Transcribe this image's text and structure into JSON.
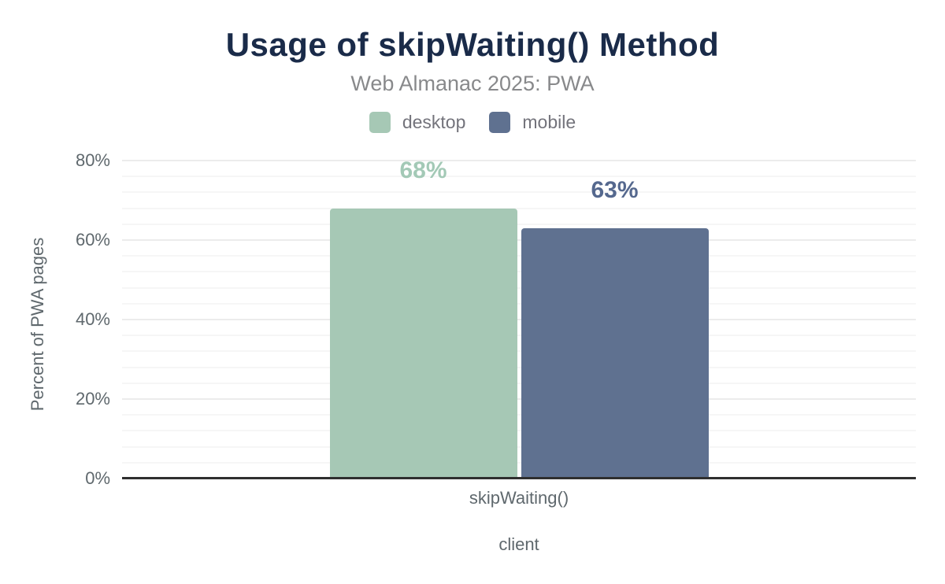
{
  "title": "Usage of skipWaiting() Method",
  "subtitle": "Web Almanac 2025: PWA",
  "legend": {
    "items": [
      {
        "label": "desktop",
        "color": "#a6c8b5"
      },
      {
        "label": "mobile",
        "color": "#5f7190"
      }
    ]
  },
  "chart_data": {
    "type": "bar",
    "title": "Usage of skipWaiting() Method",
    "subtitle": "Web Almanac 2025: PWA",
    "categories": [
      "skipWaiting()"
    ],
    "series": [
      {
        "name": "desktop",
        "values": [
          68
        ],
        "data_labels": [
          "68%"
        ],
        "color": "#a6c8b5",
        "label_color": "#a3c9b6"
      },
      {
        "name": "mobile",
        "values": [
          63
        ],
        "data_labels": [
          "63%"
        ],
        "color": "#5f7190",
        "label_color": "#55688e"
      }
    ],
    "xlabel": "client",
    "ylabel": "Percent of PWA pages",
    "ylim": [
      0,
      80
    ],
    "yticks": [
      {
        "value": 0,
        "label": "0%"
      },
      {
        "value": 20,
        "label": "20%"
      },
      {
        "value": 40,
        "label": "40%"
      },
      {
        "value": 60,
        "label": "60%"
      },
      {
        "value": 80,
        "label": "80%"
      }
    ],
    "grid": {
      "orientation": "horizontal",
      "major_interval": 20,
      "minor_interval": 4
    },
    "legend_position": "top"
  },
  "colors": {
    "title": "#1a2b49",
    "subtitle": "#88898b",
    "legend_text": "#73737b",
    "axis_text": "#5f686d",
    "axis_line": "#2f2f2f",
    "grid_major": "#ececec",
    "grid_minor": "#f6f6f6",
    "background": "#ffffff"
  }
}
